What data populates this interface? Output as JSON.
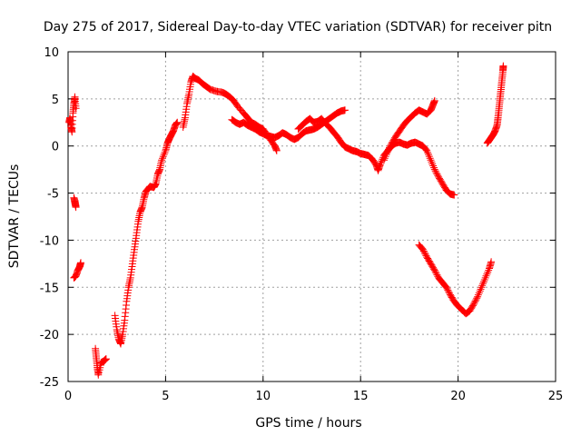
{
  "chart_data": {
    "type": "scatter",
    "title": "Day 275 of 2017, Sidereal Day-to-day VTEC variation (SDTVAR) for receiver pitn",
    "xlabel": "GPS time / hours",
    "ylabel": "SDTVAR / TECUs",
    "xlim": [
      0,
      25
    ],
    "ylim": [
      -25,
      10
    ],
    "xticks": [
      "0",
      "5",
      "10",
      "15",
      "20",
      "25"
    ],
    "yticks": [
      "-25",
      "-20",
      "-15",
      "-10",
      "-5",
      "0",
      "5",
      "10"
    ],
    "grid": true,
    "marker": "+",
    "color": "#ff0000",
    "series": [
      {
        "segments": [
          [
            [
              0.05,
              2.5
            ],
            [
              0.1,
              3.0
            ],
            [
              0.15,
              2.0
            ],
            [
              0.2,
              1.5
            ],
            [
              0.25,
              3.5
            ],
            [
              0.3,
              4.5
            ],
            [
              0.35,
              5.2
            ],
            [
              0.4,
              4.0
            ]
          ],
          [
            [
              0.3,
              -5.5
            ],
            [
              0.35,
              -6.0
            ],
            [
              0.4,
              -6.5
            ],
            [
              0.35,
              -5.8
            ]
          ],
          [
            [
              0.3,
              -14.0
            ],
            [
              0.4,
              -13.8
            ],
            [
              0.5,
              -13.2
            ],
            [
              0.6,
              -12.8
            ],
            [
              0.65,
              -12.4
            ]
          ],
          [
            [
              1.4,
              -21.5
            ],
            [
              1.45,
              -22.5
            ],
            [
              1.5,
              -23.5
            ],
            [
              1.55,
              -24.3
            ],
            [
              1.7,
              -23.0
            ],
            [
              1.85,
              -22.8
            ],
            [
              1.95,
              -22.6
            ]
          ],
          [
            [
              2.4,
              -18.0
            ],
            [
              2.5,
              -19.5
            ],
            [
              2.6,
              -20.5
            ],
            [
              2.7,
              -21.0
            ],
            [
              2.8,
              -20.0
            ],
            [
              2.9,
              -18.5
            ],
            [
              3.0,
              -16.5
            ],
            [
              3.1,
              -15.0
            ],
            [
              3.2,
              -14.0
            ],
            [
              3.3,
              -12.5
            ],
            [
              3.4,
              -11.0
            ],
            [
              3.5,
              -9.5
            ],
            [
              3.6,
              -8.0
            ],
            [
              3.7,
              -7.0
            ],
            [
              3.8,
              -6.5
            ],
            [
              3.9,
              -5.5
            ],
            [
              4.0,
              -4.8
            ],
            [
              4.2,
              -4.3
            ],
            [
              4.4,
              -4.4
            ],
            [
              4.5,
              -4.0
            ],
            [
              4.6,
              -3.0
            ],
            [
              4.7,
              -2.5
            ],
            [
              4.8,
              -1.5
            ],
            [
              5.0,
              -0.5
            ],
            [
              5.1,
              0.3
            ],
            [
              5.2,
              0.8
            ],
            [
              5.3,
              1.2
            ],
            [
              5.4,
              1.6
            ],
            [
              5.5,
              2.2
            ],
            [
              5.6,
              2.5
            ]
          ],
          [
            [
              5.9,
              2.0
            ],
            [
              6.0,
              3.0
            ],
            [
              6.1,
              4.5
            ],
            [
              6.2,
              5.5
            ],
            [
              6.3,
              6.8
            ],
            [
              6.4,
              7.4
            ],
            [
              6.5,
              7.2
            ],
            [
              6.7,
              7.0
            ],
            [
              6.9,
              6.6
            ],
            [
              7.1,
              6.3
            ],
            [
              7.3,
              6.0
            ],
            [
              7.6,
              5.8
            ],
            [
              7.9,
              5.7
            ],
            [
              8.1,
              5.5
            ],
            [
              8.3,
              5.2
            ],
            [
              8.5,
              4.8
            ],
            [
              8.7,
              4.2
            ],
            [
              9.0,
              3.5
            ],
            [
              9.2,
              3.0
            ],
            [
              9.4,
              2.5
            ],
            [
              9.6,
              2.3
            ],
            [
              9.8,
              2.0
            ],
            [
              10.0,
              1.8
            ],
            [
              10.2,
              1.2
            ],
            [
              10.4,
              0.6
            ],
            [
              10.6,
              0.0
            ],
            [
              10.7,
              -0.5
            ]
          ],
          [
            [
              8.4,
              2.8
            ],
            [
              8.6,
              2.5
            ],
            [
              8.8,
              2.3
            ],
            [
              9.0,
              2.5
            ],
            [
              9.2,
              2.2
            ],
            [
              9.4,
              2.0
            ],
            [
              9.6,
              1.8
            ],
            [
              9.8,
              1.5
            ],
            [
              10.0,
              1.3
            ],
            [
              10.2,
              1.1
            ],
            [
              10.4,
              1.0
            ],
            [
              10.6,
              0.9
            ],
            [
              10.8,
              1.1
            ],
            [
              11.0,
              1.4
            ],
            [
              11.2,
              1.2
            ],
            [
              11.4,
              0.9
            ],
            [
              11.6,
              0.7
            ],
            [
              11.8,
              0.9
            ],
            [
              12.0,
              1.3
            ],
            [
              12.2,
              1.6
            ],
            [
              12.4,
              1.7
            ],
            [
              12.6,
              1.8
            ],
            [
              12.8,
              2.0
            ],
            [
              13.0,
              2.3
            ],
            [
              13.2,
              2.6
            ],
            [
              13.4,
              2.9
            ],
            [
              13.6,
              3.2
            ],
            [
              13.8,
              3.5
            ],
            [
              14.0,
              3.7
            ],
            [
              14.2,
              3.8
            ]
          ],
          [
            [
              11.8,
              1.8
            ],
            [
              12.0,
              2.2
            ],
            [
              12.2,
              2.6
            ],
            [
              12.4,
              2.9
            ],
            [
              12.6,
              2.5
            ],
            [
              12.8,
              2.6
            ],
            [
              13.0,
              2.9
            ],
            [
              13.2,
              2.4
            ],
            [
              13.4,
              2.0
            ],
            [
              13.6,
              1.5
            ],
            [
              13.8,
              1.0
            ],
            [
              14.0,
              0.4
            ],
            [
              14.2,
              -0.1
            ],
            [
              14.4,
              -0.3
            ],
            [
              14.6,
              -0.5
            ],
            [
              14.8,
              -0.6
            ],
            [
              15.0,
              -0.8
            ],
            [
              15.2,
              -0.9
            ],
            [
              15.4,
              -1.0
            ],
            [
              15.6,
              -1.4
            ],
            [
              15.8,
              -2.0
            ],
            [
              15.9,
              -2.6
            ],
            [
              16.0,
              -2.0
            ],
            [
              16.2,
              -1.0
            ],
            [
              16.4,
              -0.5
            ],
            [
              16.6,
              0.0
            ],
            [
              16.8,
              0.3
            ],
            [
              17.0,
              0.4
            ],
            [
              17.2,
              0.2
            ],
            [
              17.4,
              0.1
            ],
            [
              17.6,
              0.3
            ],
            [
              17.8,
              0.4
            ],
            [
              18.0,
              0.2
            ],
            [
              18.2,
              0.0
            ],
            [
              18.4,
              -0.5
            ],
            [
              18.6,
              -1.5
            ],
            [
              18.8,
              -2.5
            ],
            [
              19.0,
              -3.3
            ],
            [
              19.2,
              -4.0
            ],
            [
              19.4,
              -4.7
            ],
            [
              19.6,
              -5.1
            ],
            [
              19.8,
              -5.2
            ]
          ],
          [
            [
              16.2,
              -1.5
            ],
            [
              16.4,
              -0.5
            ],
            [
              16.6,
              0.3
            ],
            [
              16.8,
              1.0
            ],
            [
              17.0,
              1.6
            ],
            [
              17.2,
              2.2
            ],
            [
              17.4,
              2.7
            ],
            [
              17.6,
              3.1
            ],
            [
              17.8,
              3.5
            ],
            [
              18.0,
              3.8
            ],
            [
              18.2,
              3.6
            ],
            [
              18.4,
              3.4
            ],
            [
              18.6,
              3.8
            ],
            [
              18.7,
              4.3
            ],
            [
              18.8,
              4.8
            ]
          ],
          [
            [
              18.0,
              -10.5
            ],
            [
              18.2,
              -11.0
            ],
            [
              18.4,
              -11.8
            ],
            [
              18.6,
              -12.5
            ],
            [
              18.8,
              -13.2
            ],
            [
              19.0,
              -14.0
            ],
            [
              19.2,
              -14.5
            ],
            [
              19.4,
              -15.0
            ],
            [
              19.6,
              -15.8
            ],
            [
              19.8,
              -16.5
            ],
            [
              20.0,
              -17.0
            ],
            [
              20.2,
              -17.4
            ],
            [
              20.4,
              -17.8
            ],
            [
              20.6,
              -17.5
            ],
            [
              20.8,
              -16.8
            ],
            [
              21.0,
              -16.0
            ],
            [
              21.2,
              -15.0
            ],
            [
              21.4,
              -14.0
            ],
            [
              21.6,
              -13.0
            ],
            [
              21.7,
              -12.3
            ]
          ],
          [
            [
              21.5,
              0.3
            ],
            [
              21.6,
              0.6
            ],
            [
              21.7,
              0.9
            ],
            [
              21.8,
              1.2
            ],
            [
              21.9,
              1.6
            ],
            [
              22.0,
              2.2
            ],
            [
              22.05,
              3.0
            ],
            [
              22.1,
              4.0
            ],
            [
              22.15,
              5.0
            ],
            [
              22.2,
              6.0
            ],
            [
              22.25,
              7.0
            ],
            [
              22.3,
              8.0
            ],
            [
              22.32,
              8.5
            ]
          ]
        ]
      }
    ]
  }
}
